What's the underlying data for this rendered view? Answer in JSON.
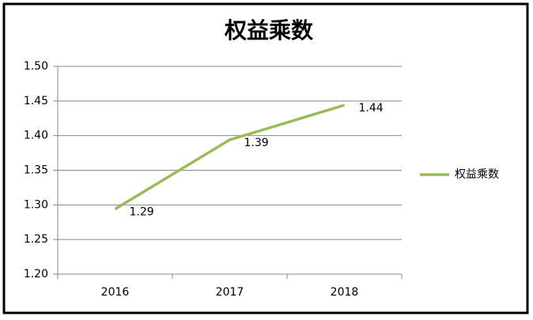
{
  "chart_data": {
    "type": "line",
    "title": "权益乘数",
    "categories": [
      "2016",
      "2017",
      "2018"
    ],
    "series": [
      {
        "name": "权益乘数",
        "color": "#9bbb59",
        "values": [
          1.294,
          1.394,
          1.444
        ],
        "value_labels": [
          "1.29",
          "1.39",
          "1.44"
        ]
      }
    ],
    "ylim": [
      1.2,
      1.5
    ],
    "yticks": [
      {
        "value": 1.2,
        "label": "1.20"
      },
      1.25,
      {
        "value": 1.3,
        "label": "1.30"
      },
      1.35,
      {
        "value": 1.4,
        "label": "1.40"
      },
      1.45,
      {
        "value": 1.5,
        "label": "1.50"
      }
    ],
    "grid": true,
    "legend": "right"
  }
}
